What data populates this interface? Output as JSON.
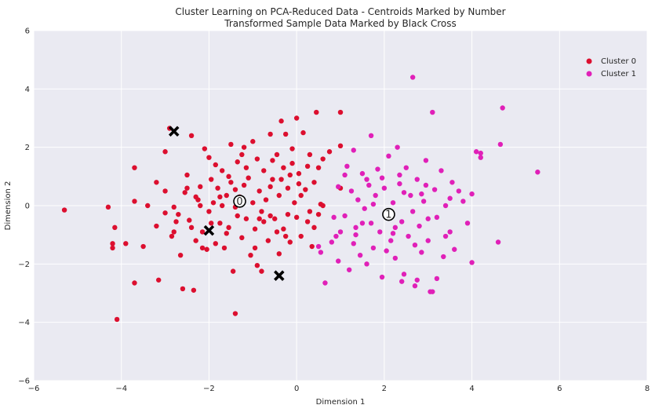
{
  "chart_data": {
    "type": "scatter",
    "title_line1": "Cluster Learning on PCA-Reduced Data - Centroids Marked by Number",
    "title_line2": "Transformed Sample Data Marked by Black Cross",
    "xlabel": "Dimension 1",
    "ylabel": "Dimension 2",
    "xlim": [
      -6,
      8
    ],
    "ylim": [
      -6,
      6
    ],
    "x_ticks": [
      -6,
      -4,
      -2,
      0,
      2,
      4,
      6,
      8
    ],
    "y_ticks": [
      -6,
      -4,
      -2,
      0,
      2,
      4,
      6
    ],
    "grid": true,
    "legend_position": "top-right",
    "background": "#eaeaf2",
    "series": [
      {
        "name": "Cluster 0",
        "color": "#dc0f2f",
        "points": [
          [
            -5.3,
            -0.15
          ],
          [
            -4.3,
            -0.05
          ],
          [
            -4.2,
            -1.3
          ],
          [
            -4.2,
            -1.45
          ],
          [
            -4.15,
            -0.75
          ],
          [
            -4.1,
            -3.9
          ],
          [
            -3.9,
            -1.3
          ],
          [
            -3.7,
            0.15
          ],
          [
            -3.7,
            1.3
          ],
          [
            -3.7,
            -2.65
          ],
          [
            -3.5,
            -1.4
          ],
          [
            -3.4,
            0.0
          ],
          [
            -3.2,
            0.8
          ],
          [
            -3.2,
            -0.7
          ],
          [
            -3.15,
            -2.55
          ],
          [
            -3.0,
            1.85
          ],
          [
            -3.0,
            -0.25
          ],
          [
            -2.9,
            2.65
          ],
          [
            -2.85,
            -1.05
          ],
          [
            -2.8,
            -0.9
          ],
          [
            -2.75,
            -0.55
          ],
          [
            -2.7,
            -0.3
          ],
          [
            -2.6,
            -2.85
          ],
          [
            -2.55,
            0.45
          ],
          [
            -2.5,
            1.05
          ],
          [
            -2.5,
            0.6
          ],
          [
            -2.45,
            -0.5
          ],
          [
            -2.4,
            2.4
          ],
          [
            -2.4,
            -0.75
          ],
          [
            -2.35,
            -2.9
          ],
          [
            -2.3,
            0.3
          ],
          [
            -2.25,
            0.2
          ],
          [
            -2.2,
            0.0
          ],
          [
            -2.15,
            -0.9
          ],
          [
            -2.1,
            1.95
          ],
          [
            -2.05,
            -1.5
          ],
          [
            -2.0,
            1.65
          ],
          [
            -2.0,
            -0.2
          ],
          [
            -1.95,
            0.9
          ],
          [
            -1.9,
            0.1
          ],
          [
            -1.85,
            -1.3
          ],
          [
            -1.8,
            0.6
          ],
          [
            -1.75,
            -0.6
          ],
          [
            -1.7,
            1.2
          ],
          [
            -1.65,
            -1.45
          ],
          [
            -1.6,
            0.35
          ],
          [
            -1.55,
            -0.75
          ],
          [
            -1.5,
            2.1
          ],
          [
            -1.5,
            0.8
          ],
          [
            -1.45,
            -2.25
          ],
          [
            -1.4,
            -0.05
          ],
          [
            -1.4,
            -3.7
          ],
          [
            -1.35,
            1.5
          ],
          [
            -1.3,
            0.3
          ],
          [
            -1.25,
            -1.1
          ],
          [
            -1.2,
            2.0
          ],
          [
            -1.2,
            0.7
          ],
          [
            -1.15,
            -0.45
          ],
          [
            -1.1,
            0.95
          ],
          [
            -1.05,
            -1.7
          ],
          [
            -1.0,
            2.2
          ],
          [
            -1.0,
            0.1
          ],
          [
            -0.95,
            -0.8
          ],
          [
            -0.9,
            1.6
          ],
          [
            -0.85,
            0.5
          ],
          [
            -0.8,
            -0.2
          ],
          [
            -0.8,
            -2.25
          ],
          [
            -0.75,
            1.2
          ],
          [
            -0.7,
            0.2
          ],
          [
            -0.65,
            -1.2
          ],
          [
            -0.6,
            2.45
          ],
          [
            -0.55,
            0.9
          ],
          [
            -0.5,
            -0.45
          ],
          [
            -0.45,
            1.75
          ],
          [
            -0.4,
            0.35
          ],
          [
            -0.4,
            -1.65
          ],
          [
            -0.35,
            2.9
          ],
          [
            -0.3,
            1.3
          ],
          [
            -0.3,
            -0.8
          ],
          [
            -0.25,
            2.45
          ],
          [
            -0.2,
            0.6
          ],
          [
            -0.15,
            -1.25
          ],
          [
            -0.1,
            1.95
          ],
          [
            -0.05,
            0.1
          ],
          [
            0.0,
            -0.4
          ],
          [
            0.0,
            3.0
          ],
          [
            0.05,
            1.1
          ],
          [
            0.1,
            -1.05
          ],
          [
            0.15,
            2.5
          ],
          [
            0.2,
            0.55
          ],
          [
            0.25,
            -0.55
          ],
          [
            0.3,
            1.75
          ],
          [
            0.35,
            -1.4
          ],
          [
            0.4,
            0.8
          ],
          [
            0.45,
            3.2
          ],
          [
            0.5,
            1.3
          ],
          [
            0.5,
            -0.3
          ],
          [
            0.55,
            0.05
          ],
          [
            0.6,
            1.6
          ],
          [
            1.0,
            3.2
          ],
          [
            1.0,
            2.05
          ],
          [
            1.0,
            0.6
          ],
          [
            -2.8,
            -0.05
          ],
          [
            -2.65,
            -1.7
          ],
          [
            -2.3,
            -1.2
          ],
          [
            -1.95,
            -0.6
          ],
          [
            -1.7,
            0.0
          ],
          [
            -1.55,
            1.0
          ],
          [
            -1.35,
            -0.35
          ],
          [
            -1.15,
            1.3
          ],
          [
            -0.95,
            -1.45
          ],
          [
            -0.75,
            -0.55
          ],
          [
            -0.6,
            0.65
          ],
          [
            -0.45,
            -0.9
          ],
          [
            -0.35,
            0.9
          ],
          [
            -0.2,
            -0.3
          ],
          [
            -0.1,
            1.45
          ],
          [
            0.1,
            0.35
          ],
          [
            0.25,
            1.35
          ],
          [
            0.4,
            -0.75
          ],
          [
            0.6,
            0.0
          ],
          [
            0.75,
            1.85
          ],
          [
            -3.0,
            0.5
          ],
          [
            -2.2,
            0.65
          ],
          [
            -1.85,
            1.4
          ],
          [
            -1.6,
            -0.95
          ],
          [
            -1.25,
            1.75
          ],
          [
            -0.85,
            -0.45
          ],
          [
            -0.55,
            1.55
          ],
          [
            -0.25,
            -1.05
          ],
          [
            0.05,
            0.75
          ],
          [
            0.3,
            -0.2
          ],
          [
            -2.15,
            -1.45
          ],
          [
            -1.75,
            0.3
          ],
          [
            -1.4,
            0.55
          ],
          [
            -0.9,
            -2.05
          ],
          [
            -0.6,
            -0.35
          ],
          [
            -0.15,
            1.05
          ]
        ]
      },
      {
        "name": "Cluster 1",
        "color": "#e020b8",
        "points": [
          [
            0.5,
            -1.4
          ],
          [
            0.55,
            -1.6
          ],
          [
            0.65,
            -2.65
          ],
          [
            0.8,
            -1.25
          ],
          [
            0.85,
            -0.4
          ],
          [
            0.9,
            -1.05
          ],
          [
            0.95,
            0.65
          ],
          [
            1.0,
            -0.9
          ],
          [
            1.1,
            1.05
          ],
          [
            1.1,
            -0.35
          ],
          [
            1.2,
            -2.2
          ],
          [
            1.25,
            0.5
          ],
          [
            1.3,
            1.9
          ],
          [
            1.3,
            -1.3
          ],
          [
            1.35,
            -0.75
          ],
          [
            1.4,
            0.2
          ],
          [
            1.45,
            -1.7
          ],
          [
            1.5,
            1.1
          ],
          [
            1.55,
            -0.1
          ],
          [
            1.6,
            -2.0
          ],
          [
            1.65,
            0.7
          ],
          [
            1.7,
            2.4
          ],
          [
            1.7,
            -0.6
          ],
          [
            1.75,
            -1.45
          ],
          [
            1.8,
            0.35
          ],
          [
            1.85,
            1.25
          ],
          [
            1.9,
            -0.9
          ],
          [
            1.95,
            -2.45
          ],
          [
            2.0,
            0.6
          ],
          [
            2.05,
            -0.3
          ],
          [
            2.1,
            1.7
          ],
          [
            2.15,
            -1.2
          ],
          [
            2.2,
            0.1
          ],
          [
            2.25,
            -1.8
          ],
          [
            2.3,
            2.0
          ],
          [
            2.35,
            0.75
          ],
          [
            2.4,
            -0.55
          ],
          [
            2.45,
            -2.35
          ],
          [
            2.5,
            1.3
          ],
          [
            2.55,
            -1.05
          ],
          [
            2.6,
            0.35
          ],
          [
            2.65,
            4.4
          ],
          [
            2.7,
            -2.75
          ],
          [
            2.75,
            0.9
          ],
          [
            2.8,
            -0.7
          ],
          [
            2.85,
            -1.6
          ],
          [
            2.9,
            0.15
          ],
          [
            2.95,
            1.55
          ],
          [
            3.0,
            -1.2
          ],
          [
            3.05,
            -2.95
          ],
          [
            3.1,
            3.2
          ],
          [
            3.15,
            0.55
          ],
          [
            3.2,
            -0.4
          ],
          [
            3.3,
            1.2
          ],
          [
            3.35,
            -1.75
          ],
          [
            3.4,
            0.0
          ],
          [
            3.5,
            -0.9
          ],
          [
            3.55,
            0.8
          ],
          [
            3.6,
            -1.5
          ],
          [
            3.7,
            0.5
          ],
          [
            3.8,
            0.15
          ],
          [
            3.9,
            -0.6
          ],
          [
            4.0,
            0.4
          ],
          [
            4.0,
            -1.95
          ],
          [
            4.1,
            1.85
          ],
          [
            4.2,
            1.65
          ],
          [
            4.6,
            -1.25
          ],
          [
            4.65,
            2.1
          ],
          [
            4.7,
            3.35
          ],
          [
            5.5,
            1.15
          ],
          [
            1.5,
            -0.6
          ],
          [
            1.95,
            0.95
          ],
          [
            2.2,
            -0.95
          ],
          [
            2.45,
            0.45
          ],
          [
            2.7,
            -1.35
          ],
          [
            2.95,
            0.7
          ],
          [
            3.2,
            -2.5
          ],
          [
            3.5,
            0.25
          ],
          [
            0.95,
            -1.9
          ],
          [
            1.35,
            -1.0
          ],
          [
            1.75,
            0.05
          ],
          [
            2.05,
            -1.55
          ],
          [
            2.35,
            1.05
          ],
          [
            2.65,
            -0.2
          ],
          [
            3.0,
            -0.45
          ],
          [
            3.4,
            -1.05
          ],
          [
            4.2,
            1.8
          ],
          [
            1.15,
            1.35
          ],
          [
            1.6,
            0.9
          ],
          [
            2.4,
            -2.6
          ],
          [
            2.75,
            -2.55
          ],
          [
            3.1,
            -2.95
          ],
          [
            2.25,
            -0.75
          ],
          [
            2.85,
            0.4
          ]
        ]
      }
    ],
    "centroids": [
      {
        "label": "0",
        "x": -1.3,
        "y": 0.15
      },
      {
        "label": "1",
        "x": 2.1,
        "y": -0.3
      }
    ],
    "samples": [
      {
        "x": -2.8,
        "y": 2.55
      },
      {
        "x": -2.0,
        "y": -0.85
      },
      {
        "x": -0.4,
        "y": -2.4
      }
    ]
  }
}
